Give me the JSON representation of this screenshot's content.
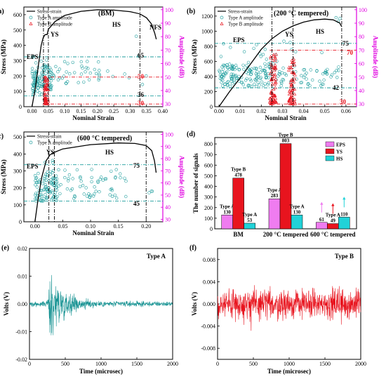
{
  "colors": {
    "teal": "#1f9e9e",
    "red": "#e8141e",
    "magenta": "#e000e0",
    "eps": "#ef7cf0",
    "ys": "#e8141e",
    "hs": "#21d2d8"
  },
  "panels": {
    "a": {
      "label": "(a)",
      "title": "(BM)",
      "regions": [
        "EPS",
        "YS",
        "HS",
        "NFS"
      ],
      "annotations": [
        "65",
        "50",
        "36",
        "30"
      ]
    },
    "b": {
      "label": "(b)",
      "title": "(200 °C tempered)",
      "regions": [
        "EPS",
        "YS",
        "HS"
      ],
      "annotations": [
        "75",
        "70",
        "42",
        "30"
      ]
    },
    "c": {
      "label": "(c)",
      "title": "(600 °C tempered)",
      "regions": [
        "EPS",
        "YS",
        "HS"
      ],
      "annotations": [
        "75",
        "45"
      ]
    },
    "d": {
      "label": "(d)"
    },
    "e": {
      "label": "(e)"
    },
    "f": {
      "label": "(f)"
    }
  },
  "legend": {
    "curve": "Stress-strain",
    "typeA": "Type A amplitude",
    "typeB": "Type B amplitude"
  },
  "chart_data": [
    {
      "id": "a",
      "type": "line",
      "xlabel": "Nominal Strain",
      "ylabel": "Stress (MPa)",
      "y2label": "Amplitude (dB)",
      "xlim": [
        -0.025,
        0.4
      ],
      "ylim": [
        0,
        650
      ],
      "y2lim": [
        28,
        102
      ],
      "xticks": [
        "0.00",
        "0.05",
        "0.10",
        "0.15",
        "0.20",
        "0.25",
        "0.30",
        "0.35",
        "0.40"
      ],
      "yticks": [
        "0",
        "100",
        "200",
        "300",
        "400",
        "500",
        "600"
      ],
      "y2ticks": [
        "30",
        "40",
        "50",
        "60",
        "70",
        "80",
        "90",
        "100"
      ],
      "curve": [
        [
          0,
          0
        ],
        [
          0.01,
          120
        ],
        [
          0.02,
          280
        ],
        [
          0.028,
          400
        ],
        [
          0.034,
          450
        ],
        [
          0.04,
          470
        ],
        [
          0.046,
          470
        ],
        [
          0.05,
          505
        ],
        [
          0.07,
          555
        ],
        [
          0.1,
          595
        ],
        [
          0.15,
          622
        ],
        [
          0.2,
          632
        ],
        [
          0.25,
          630
        ],
        [
          0.3,
          620
        ],
        [
          0.33,
          605
        ],
        [
          0.35,
          580
        ],
        [
          0.365,
          540
        ],
        [
          0.375,
          480
        ],
        [
          0.38,
          440
        ]
      ],
      "vlines": [
        0.035,
        0.05,
        0.33
      ],
      "hlines_A": [
        65,
        36
      ],
      "hlines_B": [
        50,
        30
      ]
    },
    {
      "id": "b",
      "type": "line",
      "xlabel": "Nominal Strain",
      "ylabel": "Stress (MPa)",
      "y2label": "Amplitude (dB)",
      "xlim": [
        -0.002,
        0.065
      ],
      "ylim": [
        0,
        1320
      ],
      "y2lim": [
        28,
        102
      ],
      "xticks": [
        "0.00",
        "0.01",
        "0.02",
        "0.03",
        "0.04",
        "0.05",
        "0.06"
      ],
      "yticks": [
        "0",
        "200",
        "400",
        "600",
        "800",
        "1000",
        "1200"
      ],
      "y2ticks": [
        "30",
        "40",
        "50",
        "60",
        "70",
        "80",
        "90",
        "100"
      ],
      "curve": [
        [
          0,
          0
        ],
        [
          0.005,
          200
        ],
        [
          0.01,
          380
        ],
        [
          0.015,
          570
        ],
        [
          0.02,
          760
        ],
        [
          0.025,
          900
        ],
        [
          0.03,
          1000
        ],
        [
          0.035,
          1070
        ],
        [
          0.04,
          1120
        ],
        [
          0.045,
          1150
        ],
        [
          0.05,
          1160
        ],
        [
          0.054,
          1150
        ],
        [
          0.057,
          1110
        ],
        [
          0.058,
          1060
        ]
      ],
      "vlines": [
        0.025,
        0.035,
        0.058
      ],
      "hlines_A": [
        75,
        42
      ],
      "hlines_B": [
        70,
        30
      ]
    },
    {
      "id": "c",
      "type": "line",
      "xlabel": "Nominal Strain",
      "ylabel": "Stress (MPa)",
      "y2label": "Amplitude (dB)",
      "xlim": [
        -0.02,
        0.23
      ],
      "ylim": [
        0,
        530
      ],
      "y2lim": [
        28,
        102
      ],
      "xticks": [
        "0.00",
        "0.05",
        "0.10",
        "0.15",
        "0.20"
      ],
      "yticks": [
        "0",
        "100",
        "200",
        "300",
        "400",
        "500"
      ],
      "y2ticks": [
        "30",
        "40",
        "50",
        "60",
        "70",
        "80",
        "90",
        "100"
      ],
      "curve": [
        [
          0,
          0
        ],
        [
          0.005,
          120
        ],
        [
          0.012,
          260
        ],
        [
          0.02,
          360
        ],
        [
          0.027,
          395
        ],
        [
          0.035,
          410
        ],
        [
          0.05,
          430
        ],
        [
          0.1,
          455
        ],
        [
          0.15,
          465
        ],
        [
          0.18,
          462
        ],
        [
          0.2,
          450
        ],
        [
          0.21,
          420
        ],
        [
          0.215,
          360
        ],
        [
          0.218,
          290
        ]
      ],
      "vlines": [
        0.025,
        0.035,
        0.2
      ],
      "hlines_A": [
        75,
        45
      ],
      "hlines_B": []
    },
    {
      "id": "d",
      "type": "bar",
      "ylabel": "The number of signals",
      "ylim": [
        0,
        860
      ],
      "yticks": [
        "0",
        "100",
        "200",
        "300",
        "400",
        "500",
        "600",
        "700",
        "800"
      ],
      "categories": [
        "BM",
        "200 °C tempered",
        "600 °C tempered"
      ],
      "series": [
        {
          "name": "EPS",
          "values": [
            130,
            283,
            61
          ],
          "labels": [
            "Type A",
            "Type A",
            ""
          ]
        },
        {
          "name": "YS",
          "values": [
            478,
            803,
            49
          ],
          "labels": [
            "Type B",
            "Type B",
            "Type A"
          ]
        },
        {
          "name": "HS",
          "values": [
            53,
            130,
            110
          ],
          "labels": [
            "Type A",
            "Type A",
            ""
          ]
        }
      ]
    },
    {
      "id": "e",
      "type": "line",
      "xlabel": "Time (microsec)",
      "ylabel": "Volts (V)",
      "legend": "Type A",
      "xlim": [
        0,
        2000
      ],
      "ylim": [
        -0.02,
        0.02
      ],
      "xticks": [
        "0",
        "500",
        "1000",
        "1500",
        "2000"
      ],
      "yticks": [
        "-0.02",
        "-0.01",
        "0.00",
        "0.01",
        "0.02"
      ]
    },
    {
      "id": "f",
      "type": "line",
      "xlabel": "Time (microsec)",
      "ylabel": "Volts (V)",
      "legend": "Type B",
      "xlim": [
        0,
        2000
      ],
      "ylim": [
        -0.01,
        0.01
      ],
      "xticks": [
        "0",
        "500",
        "1000",
        "1500",
        "2000"
      ],
      "yticks": [
        "-0.008",
        "-0.004",
        "0.000",
        "0.004",
        "0.008"
      ]
    }
  ]
}
